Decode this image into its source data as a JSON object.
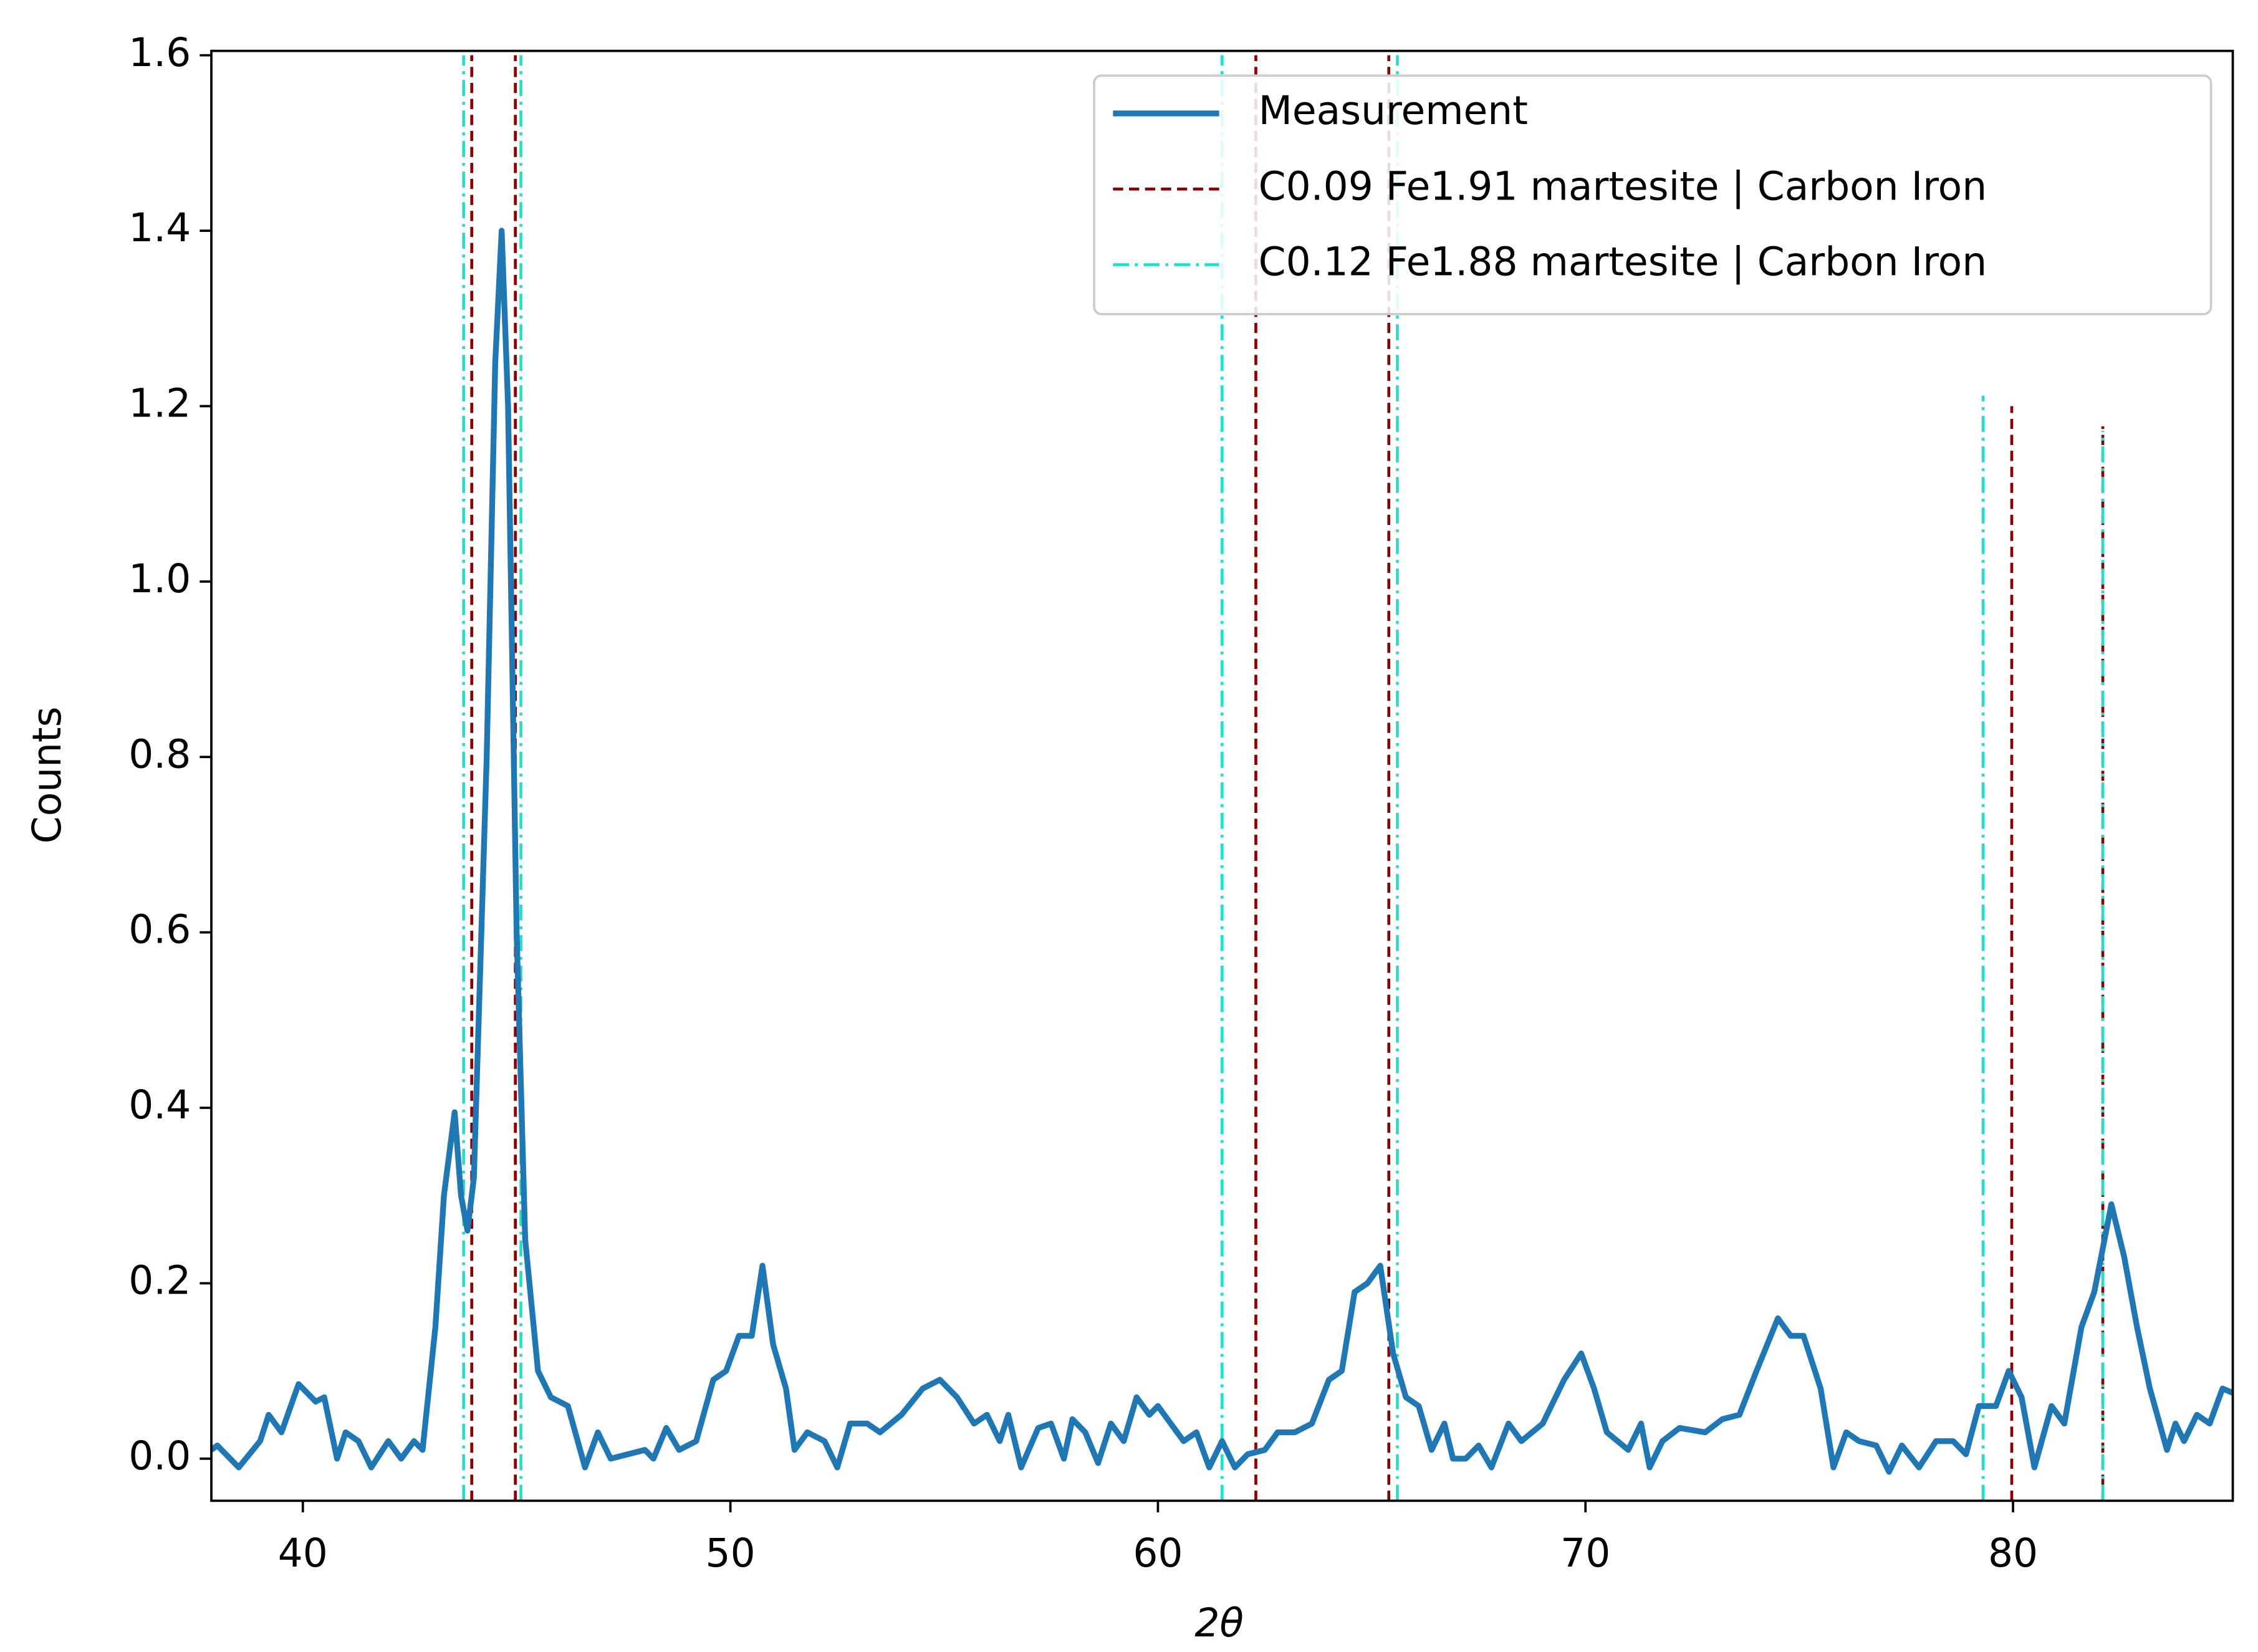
{
  "chart_data": {
    "type": "line",
    "xlabel": "2θ",
    "ylabel": "Counts",
    "xlim": [
      37.86,
      85.14
    ],
    "ylim": [
      -0.048,
      1.605
    ],
    "xticks": [
      40,
      50,
      60,
      70,
      80
    ],
    "yticks": [
      {
        "value": 0,
        "label": "0.0"
      },
      0.2,
      0.4,
      0.6,
      0.8,
      {
        "value": 1,
        "label": "1.0"
      },
      1.2,
      1.4,
      1.6
    ],
    "legend": "upper right",
    "series": [
      {
        "name": "Measurement",
        "color": "#1f77b4",
        "x": [
          37.86,
          38,
          38.5,
          39,
          39.2,
          39.5,
          39.9,
          40.3,
          40.5,
          40.8,
          41,
          41.3,
          41.6,
          42,
          42.3,
          42.6,
          42.8,
          43.1,
          43.3,
          43.55,
          43.7,
          43.85,
          44,
          44.3,
          44.5,
          44.65,
          44.8,
          45,
          45.2,
          45.5,
          45.8,
          46.2,
          46.6,
          46.9,
          47.2,
          47.6,
          48,
          48.2,
          48.5,
          48.8,
          49.2,
          49.6,
          49.9,
          50.2,
          50.5,
          50.75,
          51,
          51.3,
          51.5,
          51.8,
          52.2,
          52.5,
          52.8,
          53.2,
          53.5,
          54,
          54.5,
          54.9,
          55.3,
          55.7,
          56,
          56.3,
          56.5,
          56.8,
          57.2,
          57.5,
          57.8,
          58,
          58.3,
          58.6,
          58.9,
          59.2,
          59.5,
          59.8,
          60,
          60.3,
          60.6,
          60.9,
          61.2,
          61.5,
          61.8,
          62.1,
          62.5,
          62.8,
          63.2,
          63.6,
          64,
          64.3,
          64.6,
          64.9,
          65.2,
          65.5,
          65.8,
          66.1,
          66.4,
          66.7,
          66.9,
          67.2,
          67.5,
          67.8,
          68.2,
          68.5,
          69,
          69.5,
          69.9,
          70.2,
          70.5,
          71,
          71.3,
          71.5,
          71.8,
          72.2,
          72.8,
          73.2,
          73.6,
          74,
          74.5,
          74.8,
          75.1,
          75.5,
          75.8,
          76.1,
          76.4,
          76.8,
          77.1,
          77.4,
          77.8,
          78.2,
          78.6,
          78.9,
          79.2,
          79.6,
          79.9,
          80.2,
          80.5,
          80.9,
          81.2,
          81.6,
          81.9,
          82.3,
          82.6,
          82.9,
          83.2,
          83.6,
          83.8,
          84,
          84.3,
          84.6,
          84.9,
          85.14
        ],
        "values": [
          0.01,
          0.015,
          -0.01,
          0.02,
          0.05,
          0.03,
          0.085,
          0.065,
          0.07,
          0,
          0.03,
          0.02,
          -0.01,
          0.02,
          0,
          0.02,
          0.01,
          0.15,
          0.3,
          0.395,
          0.3,
          0.26,
          0.32,
          0.8,
          1.25,
          1.4,
          1.2,
          0.6,
          0.25,
          0.1,
          0.07,
          0.06,
          -0.01,
          0.03,
          0,
          0.005,
          0.01,
          0,
          0.035,
          0.01,
          0.02,
          0.09,
          0.1,
          0.14,
          0.14,
          0.22,
          0.13,
          0.08,
          0.01,
          0.03,
          0.02,
          -0.01,
          0.04,
          0.04,
          0.03,
          0.05,
          0.08,
          0.09,
          0.07,
          0.04,
          0.05,
          0.02,
          0.05,
          -0.01,
          0.035,
          0.04,
          0,
          0.045,
          0.03,
          -0.005,
          0.04,
          0.02,
          0.07,
          0.05,
          0.06,
          0.04,
          0.02,
          0.03,
          -0.01,
          0.02,
          -0.01,
          0.005,
          0.01,
          0.03,
          0.03,
          0.04,
          0.09,
          0.1,
          0.19,
          0.2,
          0.22,
          0.12,
          0.07,
          0.06,
          0.01,
          0.04,
          0,
          0,
          0.015,
          -0.01,
          0.04,
          0.02,
          0.04,
          0.09,
          0.12,
          0.08,
          0.03,
          0.01,
          0.04,
          -0.01,
          0.02,
          0.035,
          0.03,
          0.045,
          0.05,
          0.1,
          0.16,
          0.14,
          0.14,
          0.08,
          -0.01,
          0.03,
          0.02,
          0.015,
          -0.015,
          0.015,
          -0.01,
          0.02,
          0.02,
          0.005,
          0.06,
          0.06,
          0.1,
          0.07,
          -0.01,
          0.06,
          0.04,
          0.15,
          0.19,
          0.29,
          0.23,
          0.15,
          0.08,
          0.01,
          0.04,
          0.02,
          0.05,
          0.04,
          0.08,
          0.075
        ]
      }
    ],
    "reference_lines": [
      {
        "name": "C0.09 Fe1.91 martesite | Carbon Iron",
        "color": "#8b0000",
        "linestyle": "dashed",
        "x": [
          43.95,
          44.97,
          62.29,
          65.4,
          79.97,
          82.1
        ],
        "values": [
          1.6,
          1.6,
          1.6,
          1.6,
          1.2,
          1.177
        ]
      },
      {
        "name": "C0.12 Fe1.88 martesite | Carbon Iron",
        "color": "#1fe0c8",
        "linestyle": "dashdot",
        "x": [
          43.76,
          45.1,
          61.5,
          65.6,
          79.3,
          82.1
        ],
        "values": [
          1.6,
          1.6,
          1.6,
          1.6,
          1.212,
          1.172
        ]
      }
    ]
  }
}
